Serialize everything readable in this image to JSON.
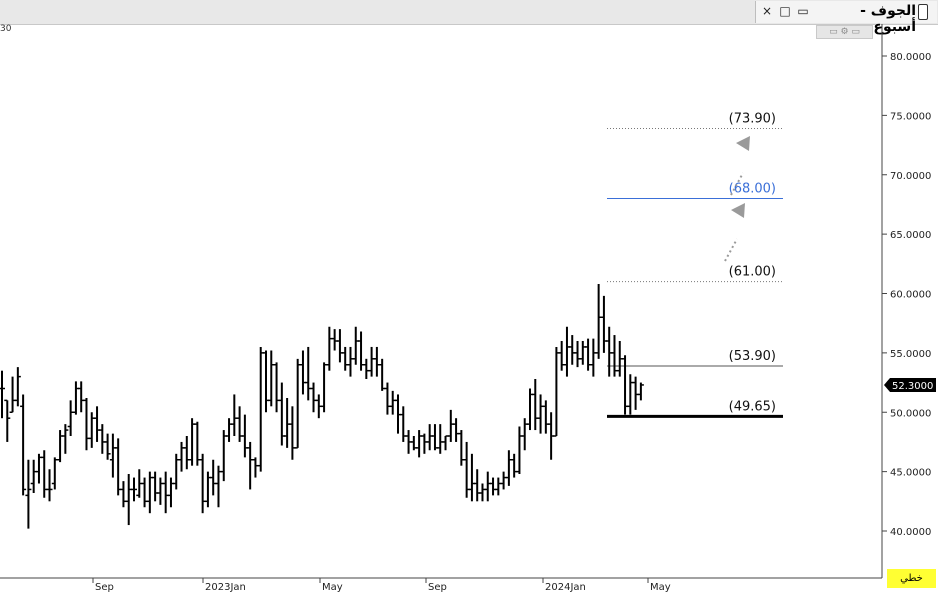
{
  "window": {
    "title": "الجوف - أسبوع",
    "close_label": "×",
    "restore_label": "□",
    "minimize_label": "▭"
  },
  "mini_toolbar": {
    "label": "▭ ⚙ ▭"
  },
  "corner_left_label": "30",
  "footer_badge": "خطي",
  "colors": {
    "bar": "#000000",
    "blue_level": "#3a6fd8",
    "arrow": "#9a9a9a",
    "price_tag_bg": "#000000"
  },
  "chart_data": {
    "type": "ohlc",
    "title": "",
    "xlabel": "",
    "ylabel": "",
    "ylim": [
      38.0,
      82.0
    ],
    "y_ticks": [
      "80.0000",
      "75.0000",
      "70.0000",
      "65.0000",
      "60.0000",
      "55.0000",
      "50.0000",
      "45.0000",
      "40.0000"
    ],
    "x_tick_labels": [
      "Sep",
      "2023Jan",
      "May",
      "Sep",
      "2024Jan",
      "May"
    ],
    "current_price": "52.3000",
    "levels": [
      {
        "label": "(73.90)",
        "value": 73.9,
        "style": "dotted"
      },
      {
        "label": "(68.00)",
        "value": 68.0,
        "style": "blue"
      },
      {
        "label": "(61.00)",
        "value": 61.0,
        "style": "dotted"
      },
      {
        "label": "(53.90)",
        "value": 53.9,
        "style": "thin"
      },
      {
        "label": "(49.65)",
        "value": 49.65,
        "style": "thick"
      }
    ],
    "bars": [
      [
        52,
        53.5,
        49.5,
        52
      ],
      [
        51,
        51,
        47.5,
        49.5
      ],
      [
        50,
        53,
        50,
        51
      ],
      [
        51,
        53.8,
        50.5,
        53
      ],
      [
        50.5,
        51.5,
        43,
        43.5
      ],
      [
        43,
        46,
        40.2,
        43.5
      ],
      [
        44,
        46,
        43.2,
        45
      ],
      [
        45,
        46.5,
        44,
        46.2
      ],
      [
        46.2,
        46.8,
        42.8,
        43.5
      ],
      [
        43.5,
        45.2,
        42.5,
        43.5
      ],
      [
        44,
        46.2,
        43.5,
        46
      ],
      [
        46,
        48.5,
        45.8,
        48
      ],
      [
        48,
        49,
        46.5,
        48.5
      ],
      [
        48.8,
        51,
        48,
        50
      ],
      [
        50,
        52.6,
        49.8,
        52
      ],
      [
        52,
        52.6,
        50,
        51
      ],
      [
        51,
        51.2,
        46.8,
        47.8
      ],
      [
        47.8,
        50,
        47,
        49.5
      ],
      [
        49.5,
        50.5,
        47.5,
        48.5
      ],
      [
        48.5,
        49,
        46.5,
        47.5
      ],
      [
        47.5,
        48.2,
        46,
        46.5
      ],
      [
        46,
        48.2,
        44.5,
        47
      ],
      [
        47,
        47.8,
        43,
        43.5
      ],
      [
        43.5,
        44.2,
        42,
        42.5
      ],
      [
        42.5,
        44.8,
        40.5,
        43.5
      ],
      [
        43.5,
        44.5,
        42.5,
        43.5
      ],
      [
        43,
        45.2,
        42.8,
        44
      ],
      [
        44,
        44.5,
        42,
        42.5
      ],
      [
        42.5,
        45,
        41.5,
        44.5
      ],
      [
        44.5,
        45,
        42.5,
        43.2
      ],
      [
        43.2,
        44.5,
        42.2,
        44
      ],
      [
        44,
        45,
        41.5,
        43
      ],
      [
        43,
        44.5,
        42,
        44
      ],
      [
        44,
        46.5,
        43.5,
        46
      ],
      [
        46,
        47.5,
        45,
        47
      ],
      [
        47,
        48,
        45.2,
        46
      ],
      [
        46,
        49.5,
        45.5,
        49
      ],
      [
        49,
        49.2,
        45.5,
        46
      ],
      [
        46,
        46.5,
        41.5,
        42.5
      ],
      [
        42.5,
        45,
        42,
        44.5
      ],
      [
        44.5,
        46,
        43,
        44
      ],
      [
        44,
        45.5,
        42,
        45
      ],
      [
        45,
        48.5,
        44.2,
        48
      ],
      [
        48,
        49.5,
        47.5,
        49
      ],
      [
        49,
        51.5,
        48,
        49.5
      ],
      [
        49.5,
        50.5,
        47.5,
        48
      ],
      [
        48,
        49.8,
        46.2,
        47
      ],
      [
        47,
        47.5,
        43.5,
        46
      ],
      [
        46,
        46.2,
        44.5,
        45.5
      ],
      [
        45.5,
        55.5,
        45,
        55
      ],
      [
        55,
        55.2,
        50,
        51
      ],
      [
        51,
        55.2,
        50.5,
        54
      ],
      [
        54,
        54.2,
        50,
        51
      ],
      [
        51,
        52.5,
        47.2,
        48
      ],
      [
        48,
        51.2,
        47,
        49
      ],
      [
        49,
        50.5,
        46,
        47
      ],
      [
        47,
        54.5,
        47,
        54
      ],
      [
        54,
        55.2,
        51.5,
        52.5
      ],
      [
        52.5,
        55.5,
        51,
        52
      ],
      [
        52,
        52.5,
        50,
        51
      ],
      [
        51,
        51.5,
        49.5,
        50.5
      ],
      [
        50.5,
        54.2,
        50,
        54
      ],
      [
        54,
        57.2,
        53.5,
        56.2
      ],
      [
        56.2,
        57,
        55.2,
        56
      ],
      [
        56,
        57,
        54.2,
        55
      ],
      [
        55,
        55.5,
        53.5,
        54
      ],
      [
        54,
        55.5,
        53,
        54.5
      ],
      [
        54.5,
        57.2,
        54,
        56
      ],
      [
        56,
        56.8,
        53.5,
        54
      ],
      [
        54,
        54.5,
        52.8,
        53.5
      ],
      [
        53.5,
        55.5,
        53,
        54.5
      ],
      [
        54.5,
        55.5,
        53,
        54
      ],
      [
        54,
        54.5,
        51.8,
        52
      ],
      [
        52,
        52.5,
        49.8,
        50.5
      ],
      [
        50.5,
        51.8,
        49.8,
        51
      ],
      [
        51,
        51.5,
        48.2,
        49.8
      ],
      [
        49.8,
        50.5,
        47.5,
        48
      ],
      [
        48,
        48.5,
        46.5,
        47.5
      ],
      [
        47.5,
        48,
        46.8,
        47
      ],
      [
        47,
        48.5,
        46.2,
        48
      ],
      [
        48,
        48.2,
        46.5,
        47.5
      ],
      [
        47.5,
        49,
        46.8,
        48
      ],
      [
        48,
        49,
        46.8,
        47
      ],
      [
        47,
        49,
        46.5,
        47.5
      ],
      [
        47.5,
        48,
        46.8,
        48
      ],
      [
        48,
        50.2,
        47.5,
        49
      ],
      [
        49,
        49.5,
        47.5,
        48.2
      ],
      [
        48.2,
        48.5,
        45.5,
        46
      ],
      [
        46,
        47.5,
        42.8,
        43.5
      ],
      [
        43.5,
        46.5,
        42.5,
        44
      ],
      [
        44,
        45.2,
        42.5,
        43.2
      ],
      [
        43.2,
        44,
        42.5,
        43.5
      ],
      [
        43.5,
        45,
        42.5,
        44
      ],
      [
        44,
        44.5,
        43,
        43.5
      ],
      [
        43.5,
        44.5,
        43,
        44
      ],
      [
        44,
        45,
        43.5,
        44.5
      ],
      [
        44.5,
        46.8,
        43.8,
        46
      ],
      [
        46,
        46.5,
        44.5,
        45
      ],
      [
        45,
        48.8,
        44.8,
        48
      ],
      [
        48,
        49.5,
        46.8,
        49
      ],
      [
        49,
        52,
        48.5,
        51.5
      ],
      [
        51.5,
        52.8,
        48.5,
        49.5
      ],
      [
        49.5,
        51.5,
        48.2,
        50.5
      ],
      [
        50.5,
        51,
        48.2,
        49
      ],
      [
        49,
        50,
        46,
        48
      ],
      [
        48,
        55.5,
        48,
        55
      ],
      [
        55,
        56,
        53.5,
        54
      ],
      [
        54,
        57.2,
        53,
        55.5
      ],
      [
        55.5,
        56.5,
        54,
        55
      ],
      [
        55,
        56,
        53.8,
        54.5
      ],
      [
        54.5,
        56,
        54,
        55.5
      ],
      [
        55.5,
        56.2,
        53.5,
        54
      ],
      [
        54,
        56.2,
        53,
        55
      ],
      [
        55,
        60.8,
        54.5,
        58
      ],
      [
        58,
        59.8,
        55,
        56
      ],
      [
        56,
        57.2,
        53,
        55
      ],
      [
        55,
        56.5,
        53,
        53.5
      ],
      [
        53.5,
        56,
        53,
        54.5
      ],
      [
        54.5,
        54.8,
        49.8,
        50.5
      ],
      [
        50.5,
        53.2,
        49.8,
        52.5
      ],
      [
        52.5,
        53,
        50.2,
        51.5
      ],
      [
        51.5,
        52.5,
        51,
        52.3
      ]
    ]
  }
}
